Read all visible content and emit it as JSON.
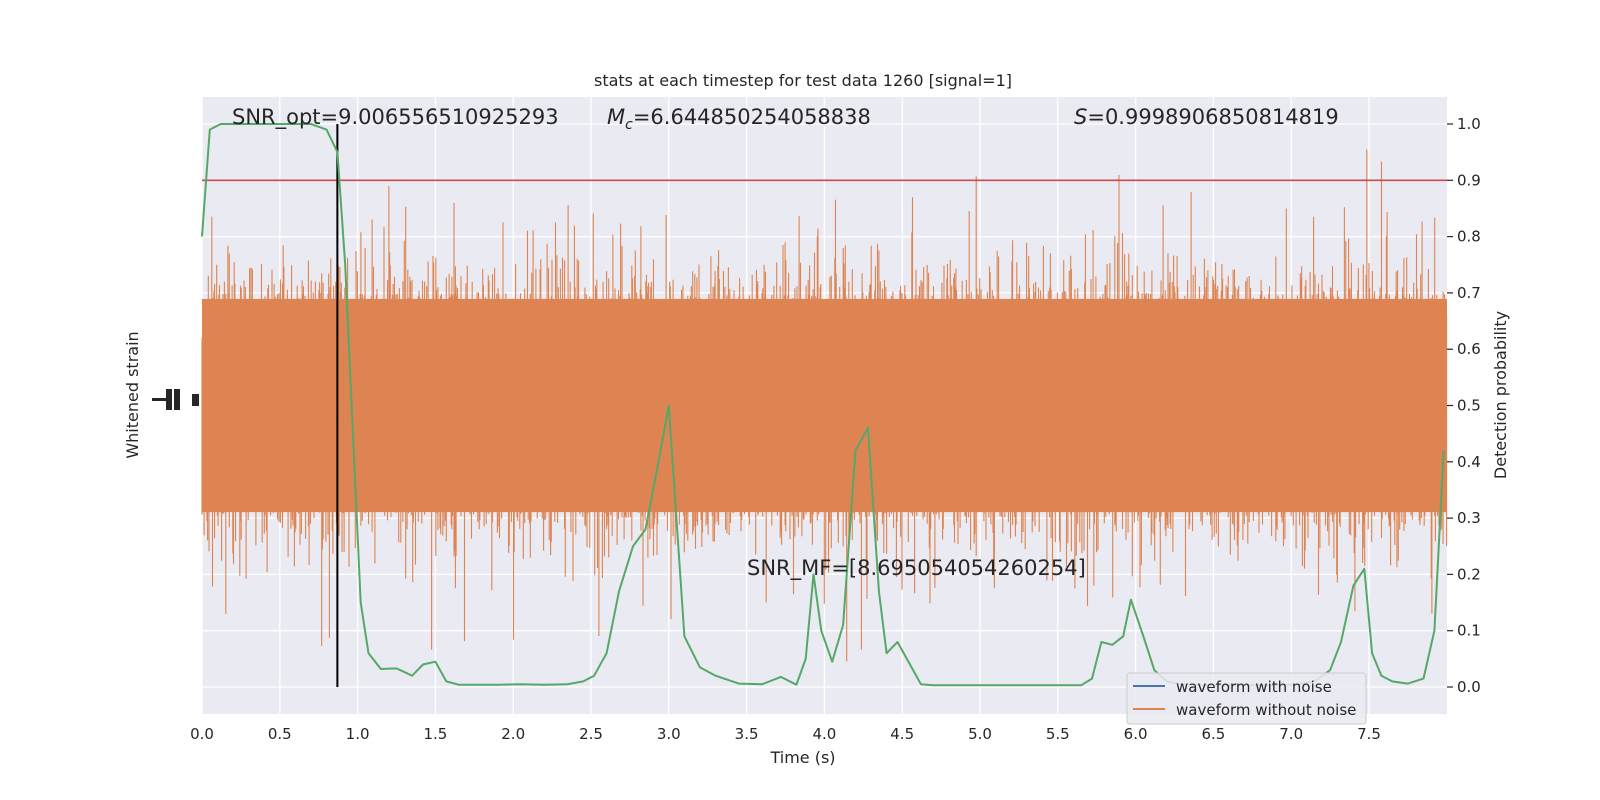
{
  "chart_data": {
    "type": "line",
    "title": "stats at each timestep for test data 1260 [signal=1]",
    "xlabel": "Time (s)",
    "ylabel_left": "Whitened strain",
    "ylabel_right": "Detection probability",
    "xlim": [
      0.0,
      8.0
    ],
    "ylim_right": [
      -0.05,
      1.05
    ],
    "x_ticks": [
      "0.0",
      "0.5",
      "1.0",
      "1.5",
      "2.0",
      "2.5",
      "3.0",
      "3.5",
      "4.0",
      "4.5",
      "5.0",
      "5.5",
      "6.0",
      "6.5",
      "7.0",
      "7.5"
    ],
    "y_ticks_right": [
      "0.0",
      "0.1",
      "0.2",
      "0.3",
      "0.4",
      "0.5",
      "0.6",
      "0.7",
      "0.8",
      "0.9",
      "1.0"
    ],
    "grid": true,
    "legend_position": "lower-right",
    "threshold": 0.9,
    "merger_time": 0.87,
    "annotations": {
      "snr_opt": "SNR_opt=9.006556510925293",
      "mc_symbol": "M",
      "mc_sub": "c",
      "mc_value": "=6.644850254058838",
      "s_symbol": "S",
      "s_value": "=0.9998906850814819",
      "snr_mf": "SNR_MF=[8.695054054260254]"
    },
    "strain_envelope": {
      "center": 0.5,
      "dense_half_width": 0.2,
      "max_excursion_high": 1.0,
      "max_excursion_low": 0.0
    },
    "series": [
      {
        "name": "waveform with noise",
        "color": "#4c72b0"
      },
      {
        "name": "waveform without noise",
        "color": "#dd8452"
      },
      {
        "color": "#55a868",
        "x": [
          0.0,
          0.05,
          0.12,
          0.2,
          0.3,
          0.4,
          0.5,
          0.6,
          0.7,
          0.8,
          0.87,
          0.92,
          0.97,
          1.02,
          1.07,
          1.15,
          1.25,
          1.35,
          1.42,
          1.5,
          1.57,
          1.65,
          1.75,
          1.9,
          2.05,
          2.2,
          2.35,
          2.45,
          2.52,
          2.6,
          2.68,
          2.77,
          2.85,
          2.92,
          3.0,
          3.1,
          3.2,
          3.3,
          3.45,
          3.6,
          3.72,
          3.82,
          3.88,
          3.93,
          3.98,
          4.05,
          4.12,
          4.2,
          4.28,
          4.35,
          4.4,
          4.47,
          4.55,
          4.62,
          4.7,
          4.8,
          4.95,
          5.1,
          5.25,
          5.4,
          5.55,
          5.65,
          5.72,
          5.78,
          5.85,
          5.92,
          5.97,
          6.05,
          6.12,
          6.2,
          6.3,
          6.45,
          6.6,
          6.75,
          6.9,
          7.05,
          7.15,
          7.25,
          7.32,
          7.4,
          7.47,
          7.52,
          7.58,
          7.65,
          7.75,
          7.85,
          7.92,
          7.98
        ],
        "values": [
          0.8,
          0.99,
          1.0,
          1.0,
          1.0,
          1.0,
          1.0,
          1.0,
          1.0,
          0.99,
          0.95,
          0.75,
          0.45,
          0.15,
          0.06,
          0.032,
          0.033,
          0.02,
          0.04,
          0.045,
          0.01,
          0.004,
          0.004,
          0.004,
          0.005,
          0.004,
          0.005,
          0.01,
          0.02,
          0.06,
          0.17,
          0.25,
          0.28,
          0.38,
          0.5,
          0.09,
          0.035,
          0.02,
          0.006,
          0.005,
          0.018,
          0.004,
          0.05,
          0.2,
          0.1,
          0.045,
          0.11,
          0.42,
          0.46,
          0.17,
          0.06,
          0.08,
          0.04,
          0.005,
          0.003,
          0.003,
          0.003,
          0.003,
          0.003,
          0.003,
          0.003,
          0.003,
          0.015,
          0.08,
          0.075,
          0.09,
          0.155,
          0.09,
          0.03,
          0.01,
          0.005,
          0.003,
          0.003,
          0.003,
          0.003,
          0.005,
          0.01,
          0.03,
          0.08,
          0.18,
          0.21,
          0.06,
          0.02,
          0.01,
          0.006,
          0.015,
          0.1,
          0.42
        ]
      }
    ]
  }
}
